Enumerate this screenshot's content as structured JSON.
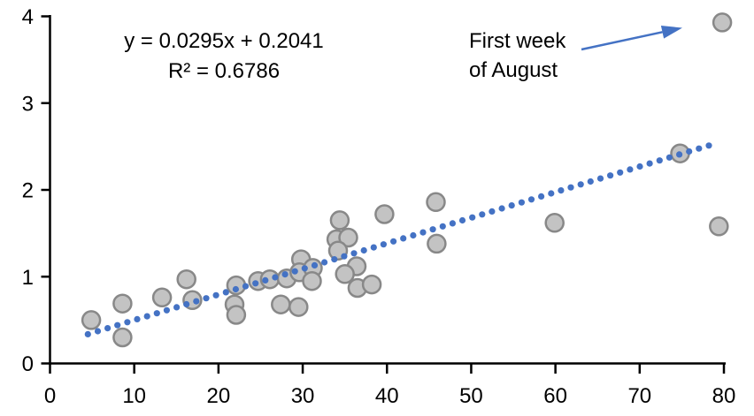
{
  "chart_data": {
    "type": "scatter",
    "title": "",
    "xlabel": "",
    "ylabel": "",
    "xlim": [
      0,
      80
    ],
    "ylim": [
      0,
      4
    ],
    "x_ticks": [
      "0",
      "10",
      "20",
      "30",
      "40",
      "50",
      "60",
      "70",
      "80"
    ],
    "y_ticks": [
      "0",
      "1",
      "2",
      "3",
      "4"
    ],
    "x_tick_values": [
      0,
      10,
      20,
      30,
      40,
      50,
      60,
      70,
      80
    ],
    "y_tick_values": [
      0,
      1,
      2,
      3,
      4
    ],
    "grid": false,
    "legend": "none",
    "points": [
      [
        4.9,
        0.5
      ],
      [
        8.6,
        0.69
      ],
      [
        8.6,
        0.3
      ],
      [
        13.3,
        0.76
      ],
      [
        16.2,
        0.97
      ],
      [
        16.9,
        0.73
      ],
      [
        22.1,
        0.9
      ],
      [
        21.9,
        0.68
      ],
      [
        22.1,
        0.56
      ],
      [
        24.7,
        0.95
      ],
      [
        26.1,
        0.97
      ],
      [
        28.1,
        0.98
      ],
      [
        27.4,
        0.68
      ],
      [
        29.5,
        0.65
      ],
      [
        29.8,
        1.2
      ],
      [
        29.6,
        1.05
      ],
      [
        31.2,
        1.1
      ],
      [
        31.1,
        0.95
      ],
      [
        34.4,
        1.65
      ],
      [
        34.0,
        1.43
      ],
      [
        35.4,
        1.45
      ],
      [
        34.2,
        1.3
      ],
      [
        36.4,
        1.12
      ],
      [
        35.0,
        1.03
      ],
      [
        36.5,
        0.87
      ],
      [
        38.2,
        0.91
      ],
      [
        39.7,
        1.72
      ],
      [
        45.8,
        1.86
      ],
      [
        45.9,
        1.38
      ],
      [
        59.9,
        1.62
      ],
      [
        74.8,
        2.42
      ],
      [
        79.8,
        3.93
      ],
      [
        79.4,
        1.58
      ]
    ],
    "trendline": {
      "type": "linear",
      "slope": 0.0295,
      "intercept": 0.2041,
      "x_start": 4.5,
      "x_end": 78.9,
      "style": "dotted",
      "equation_label": "y = 0.0295x + 0.2041",
      "r_squared_label": "R² = 0.6786"
    },
    "annotation": {
      "line1": "First week",
      "line2": "of August",
      "target_point": [
        79.8,
        3.93
      ]
    },
    "colors": {
      "marker_fill": "#C3C3C3",
      "marker_stroke": "#888888",
      "trendline": "#4472C4",
      "arrow": "#4472C4",
      "axis": "#000000",
      "text": "#000000"
    }
  }
}
